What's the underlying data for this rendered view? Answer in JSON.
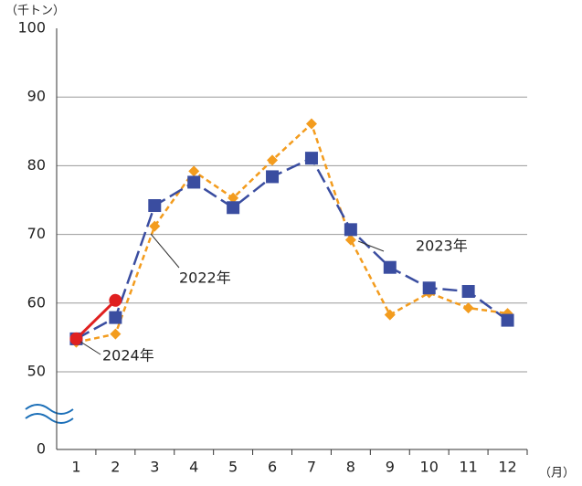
{
  "chart_data": {
    "type": "line",
    "y_label": "（千トン）",
    "x_label": "（月）",
    "categories": [
      "1",
      "2",
      "3",
      "4",
      "5",
      "6",
      "7",
      "8",
      "9",
      "10",
      "11",
      "12"
    ],
    "series": [
      {
        "name": "2022年",
        "color": "#f39c1e",
        "dash": true,
        "marker": "diamond",
        "values": [
          54.3,
          55.5,
          71.2,
          79.2,
          75.3,
          80.8,
          86.1,
          69.2,
          58.3,
          61.5,
          59.3,
          58.5
        ]
      },
      {
        "name": "2023年",
        "color": "#3a4da0",
        "dash": true,
        "marker": "square",
        "values": [
          54.8,
          57.9,
          74.2,
          77.6,
          73.9,
          78.4,
          81.1,
          70.7,
          65.2,
          62.2,
          61.7,
          57.5
        ]
      },
      {
        "name": "2024年",
        "color": "#e02020",
        "dash": false,
        "marker": "circle",
        "values": [
          54.8,
          60.4,
          null,
          null,
          null,
          null,
          null,
          null,
          null,
          null,
          null,
          null
        ]
      }
    ],
    "ylim": [
      0,
      100
    ],
    "yticks": [
      0,
      50,
      60,
      70,
      80,
      90,
      100
    ],
    "axis_break": [
      0,
      50
    ],
    "grid": true
  }
}
